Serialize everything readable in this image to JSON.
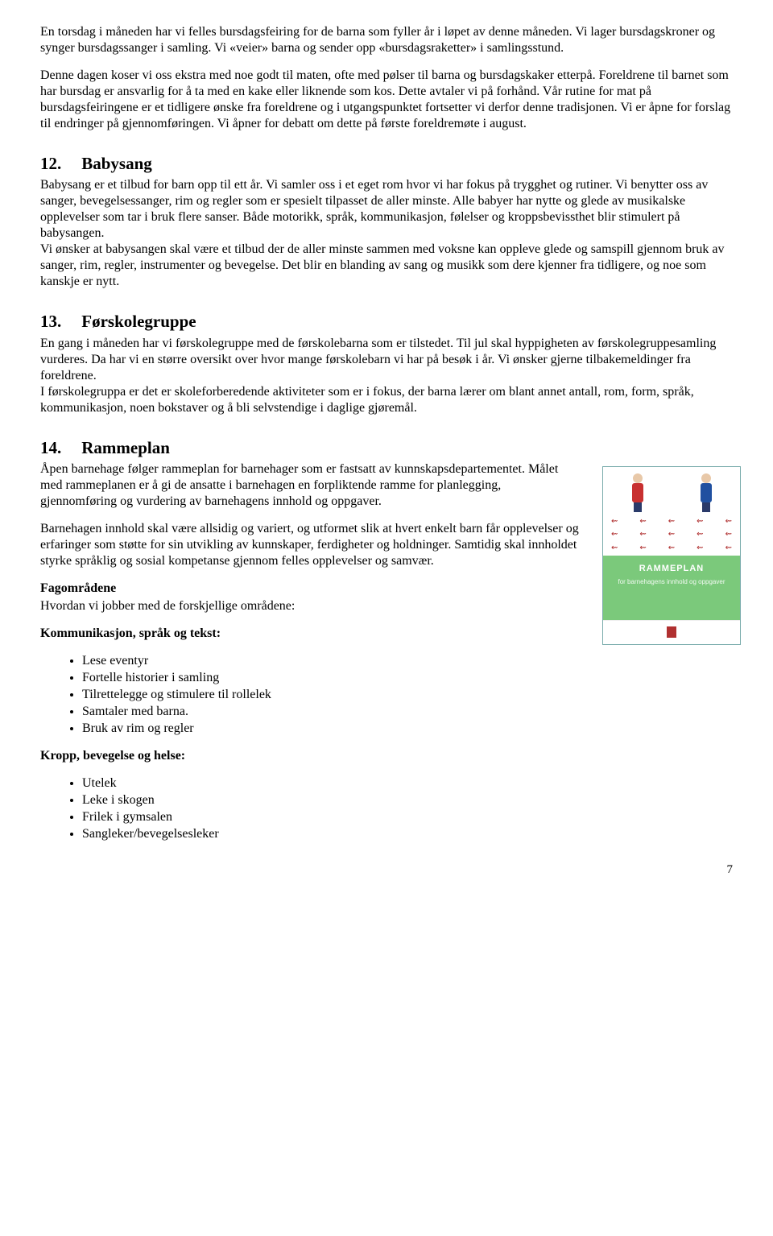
{
  "intro": {
    "para1": "En torsdag i måneden har vi felles bursdagsfeiring for de barna som fyller år i løpet av denne måneden. Vi lager bursdagskroner og synger bursdagssanger i samling. Vi «veier» barna og sender opp «bursdagsraketter» i samlingsstund.",
    "para2": "Denne dagen koser vi oss ekstra med noe godt til maten, ofte med pølser til barna og bursdagskaker etterpå. Foreldrene til barnet som har bursdag er ansvarlig for å ta med en kake eller liknende som kos. Dette avtaler vi på forhånd. Vår rutine for mat på bursdagsfeiringene er et tidligere ønske fra foreldrene og i utgangspunktet fortsetter vi derfor denne tradisjonen. Vi er åpne for forslag til endringer på gjennomføringen. Vi åpner for debatt om dette på første foreldremøte i august."
  },
  "s12": {
    "num": "12.",
    "title": "Babysang",
    "body": "Babysang er et tilbud for barn opp til ett år.  Vi samler oss i et eget rom hvor vi har fokus på trygghet og rutiner. Vi benytter oss av sanger, bevegelsessanger, rim og regler som er spesielt tilpasset de aller minste. Alle babyer har nytte og glede av musikalske opplevelser som tar i bruk flere sanser. Både motorikk, språk, kommunikasjon, følelser og kroppsbevissthet blir stimulert på babysangen.\nVi ønsker at babysangen skal være et tilbud der de aller minste sammen med voksne kan oppleve glede og samspill gjennom bruk av sanger, rim, regler, instrumenter og bevegelse. Det blir en blanding av sang og musikk som dere kjenner fra tidligere, og noe som kanskje er nytt."
  },
  "s13": {
    "num": "13.",
    "title": "Førskolegruppe",
    "body": "En gang i måneden har vi førskolegruppe med de førskolebarna som er tilstedet. Til jul skal hyppigheten av førskolegruppesamling vurderes. Da har vi en større oversikt over hvor mange førskolebarn vi har på besøk i år. Vi ønsker gjerne tilbakemeldinger fra foreldrene.\nI førskolegruppa er det er skoleforberedende aktiviteter som er i fokus, der barna lærer om blant annet antall, rom, form, språk, kommunikasjon, noen bokstaver og å bli selvstendige i daglige gjøremål."
  },
  "s14": {
    "num": "14.",
    "title": "Rammeplan",
    "body1": "Åpen barnehage følger rammeplan for barnehager som er fastsatt av kunnskapsdepartementet. Målet med rammeplanen er å gi de ansatte i barnehagen en forpliktende ramme for planlegging, gjennomføring og vurdering av barnehagens innhold og oppgaver.",
    "body2": "Barnehagen innhold skal være allsidig og variert, og utformet slik at hvert enkelt barn får opplevelser og erfaringer som støtte for sin utvikling av kunnskaper, ferdigheter og holdninger. Samtidig skal innholdet styrke språklig og sosial kompetanse gjennom felles opplevelser og samvær.",
    "fag_heading": "Fagområdene",
    "fag_sub": "Hvordan vi jobber med de forskjellige områdene:",
    "komm_heading": "Kommunikasjon, språk og tekst:",
    "komm_items": [
      "Lese eventyr",
      "Fortelle historier i samling",
      "Tilrettelegge og stimulere til rollelek",
      "Samtaler med barna.",
      "Bruk av rim og regler"
    ],
    "kropp_heading": "Kropp, bevegelse og helse:",
    "kropp_items": [
      "Utelek",
      "Leke i skogen",
      "Frilek i gymsalen",
      "Sangleker/bevegelsesleker"
    ],
    "thumb_title": "RAMMEPLAN",
    "thumb_sub": "for barnehagens innhold og oppgaver"
  },
  "page_number": "7"
}
